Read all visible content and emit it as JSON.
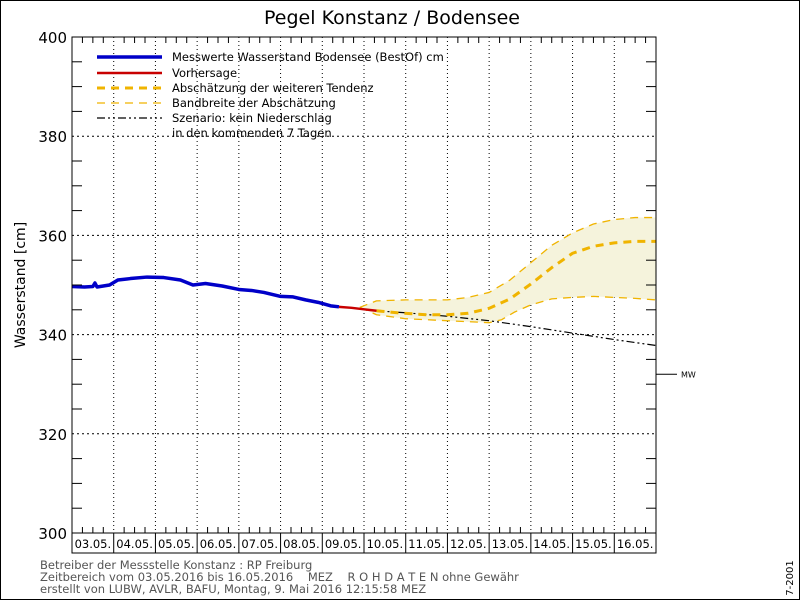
{
  "chart_data": {
    "type": "line",
    "title": "Pegel Konstanz / Bodensee",
    "ylabel": "Wasserstand [cm]",
    "xlabel": "",
    "ylim": [
      300,
      400
    ],
    "xlim_days": [
      0,
      14
    ],
    "y_ticks": [
      "300",
      "320",
      "340",
      "360",
      "380",
      "400"
    ],
    "y_tick_values": [
      300,
      320,
      340,
      360,
      380,
      400
    ],
    "x_tick_labels": [
      "03.05.",
      "04.05.",
      "05.05.",
      "06.05.",
      "07.05.",
      "08.05.",
      "09.05.",
      "10.05.",
      "11.05.",
      "12.05.",
      "13.05.",
      "14.05.",
      "15.05.",
      "16.05."
    ],
    "grid": true,
    "legend_position": "top-left",
    "reference_line": {
      "label": "MW",
      "value": 332
    },
    "series": [
      {
        "name": "Messwerte Wasserstand Bodensee  (BestOf) cm",
        "color": "#0000c8",
        "style": "solid-thick",
        "x": [
          0,
          0.3,
          0.5,
          0.55,
          0.6,
          0.9,
          1.1,
          1.4,
          1.8,
          2.2,
          2.6,
          2.9,
          3.2,
          3.6,
          4.0,
          4.3,
          4.6,
          5.0,
          5.3,
          5.6,
          5.9,
          6.2,
          6.4
        ],
        "y": [
          349.7,
          349.6,
          349.7,
          350.4,
          349.6,
          350.0,
          351.0,
          351.3,
          351.6,
          351.5,
          351.0,
          350.0,
          350.3,
          349.8,
          349.1,
          348.9,
          348.5,
          347.7,
          347.6,
          347.0,
          346.5,
          345.8,
          345.6
        ]
      },
      {
        "name": "Vorhersage",
        "color": "#c80000",
        "style": "solid",
        "x": [
          6.4,
          6.7,
          7.0,
          7.3
        ],
        "y": [
          345.6,
          345.4,
          345.1,
          344.8
        ]
      },
      {
        "name": "Abschätzung der weiteren Tendenz",
        "color": "#f0b400",
        "style": "dashed-thick",
        "x": [
          7.3,
          7.8,
          8.5,
          9.0,
          9.5,
          10.0,
          10.5,
          11.0,
          11.5,
          12.0,
          12.5,
          13.0,
          13.5,
          14.0
        ],
        "y": [
          344.8,
          344.4,
          344.0,
          344.0,
          344.3,
          345.3,
          347.2,
          350.2,
          353.5,
          356.4,
          357.8,
          358.5,
          358.8,
          358.8
        ]
      },
      {
        "name": "Bandbreite der Abschätzung (oben)",
        "color": "#f0b400",
        "style": "dashed",
        "x": [
          6.9,
          7.3,
          8.0,
          9.0,
          9.5,
          10.0,
          10.5,
          11.0,
          11.5,
          12.0,
          12.5,
          13.0,
          13.5,
          14.0
        ],
        "y": [
          345.5,
          346.8,
          347.0,
          347.0,
          347.5,
          348.5,
          351.0,
          354.5,
          358.0,
          360.5,
          362.3,
          363.2,
          363.6,
          363.6
        ]
      },
      {
        "name": "Bandbreite der Abschätzung (unten)",
        "color": "#f0b400",
        "style": "dashed",
        "x": [
          6.9,
          7.3,
          8.0,
          9.0,
          9.5,
          10.0,
          10.3,
          10.6,
          11.0,
          11.5,
          12.0,
          12.5,
          13.0,
          13.5,
          14.0
        ],
        "y": [
          345.5,
          344.0,
          343.2,
          342.8,
          342.6,
          342.4,
          343.0,
          344.5,
          346.0,
          347.2,
          347.5,
          347.7,
          347.5,
          347.3,
          347.0
        ]
      },
      {
        "name": "Szenario: kein Niederschlag in den kommenden 7 Tagen",
        "color": "#000000",
        "style": "dashdot",
        "x": [
          7.3,
          8.0,
          9.0,
          10.0,
          11.0,
          12.0,
          13.0,
          14.0
        ],
        "y": [
          344.8,
          344.4,
          343.7,
          342.8,
          341.6,
          340.3,
          339.0,
          337.8
        ]
      }
    ],
    "legend": [
      "Messwerte Wasserstand Bodensee  (BestOf) cm",
      "Vorhersage",
      "Abschätzung der weiteren Tendenz",
      "Bandbreite der Abschätzung",
      "Szenario: kein Niederschlag",
      "in den kommenden 7 Tagen"
    ]
  },
  "footer": {
    "line1": "Betreiber der Messstelle Konstanz : RP Freiburg",
    "line2": "Zeitbereich vom 03.05.2016 bis 16.05.2016    MEZ    R O H D A T E N ohne Gewähr",
    "line3": "erstellt von LUBW, AVLR, BAFU, Montag, 9. Mai 2016 12:15:58 MEZ",
    "version": "7-2001"
  }
}
